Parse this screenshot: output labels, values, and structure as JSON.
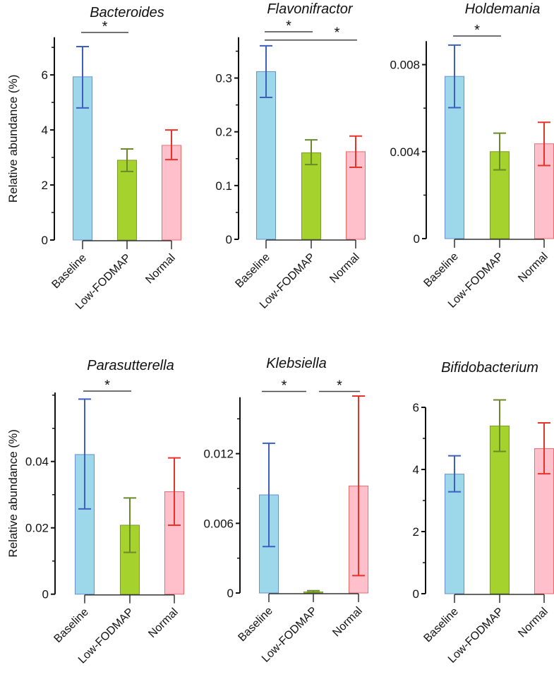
{
  "chart_data": [
    {
      "type": "bar",
      "title": "Bacteroides",
      "ylabel": "Relative abundance (%)",
      "categories": [
        "Baseline",
        "Low-FODMAP",
        "Normal"
      ],
      "values": [
        5.93,
        2.9,
        3.44
      ],
      "error_high": [
        7.03,
        3.31,
        4.0
      ],
      "error_low": [
        4.8,
        2.49,
        2.92
      ],
      "ylim": [
        0,
        7.37
      ],
      "yticks": [
        0,
        2,
        4,
        6
      ],
      "ytick_labels": [
        "0",
        "2",
        "4",
        "6"
      ],
      "minor_step": 1,
      "significance": [
        {
          "pair": [
            0,
            1
          ],
          "label": "*"
        }
      ]
    },
    {
      "type": "bar",
      "title": "Flavonifractor",
      "ylabel": "",
      "categories": [
        "Baseline",
        "Low-FODMAP",
        "Normal"
      ],
      "values": [
        0.312,
        0.161,
        0.163
      ],
      "error_high": [
        0.36,
        0.185,
        0.192
      ],
      "error_low": [
        0.264,
        0.139,
        0.134
      ],
      "ylim": [
        0,
        0.376
      ],
      "yticks": [
        0,
        0.1,
        0.2,
        0.3
      ],
      "ytick_labels": [
        "0",
        "0.1",
        "0.2",
        "0.3"
      ],
      "minor_step": 0.05,
      "significance": [
        {
          "pair": [
            0,
            1
          ],
          "label": "*"
        },
        {
          "pair": [
            0,
            2
          ],
          "label": "*"
        }
      ]
    },
    {
      "type": "bar",
      "title": "Holdemania",
      "ylabel": "",
      "categories": [
        "Baseline",
        "Low-FODMAP",
        "Normal"
      ],
      "values": [
        0.00746,
        0.004,
        0.00436
      ],
      "error_high": [
        0.0089,
        0.00485,
        0.00535
      ],
      "error_low": [
        0.00602,
        0.00316,
        0.00336
      ],
      "ylim": [
        0,
        0.00908
      ],
      "yticks": [
        0,
        0.004,
        0.008
      ],
      "ytick_labels": [
        "0",
        "0.004",
        "0.008"
      ],
      "minor_step": 0.002,
      "significance": [
        {
          "pair": [
            0,
            1
          ],
          "label": "*"
        }
      ]
    },
    {
      "type": "bar",
      "title": "Parasutterella",
      "ylabel": "Relative abundance (%)",
      "categories": [
        "Baseline",
        "Low-FODMAP",
        "Normal"
      ],
      "values": [
        0.0421,
        0.0208,
        0.0309
      ],
      "error_high": [
        0.0588,
        0.029,
        0.0411
      ],
      "error_low": [
        0.0257,
        0.0126,
        0.0208
      ],
      "ylim": [
        0,
        0.0608
      ],
      "yticks": [
        0,
        0.02,
        0.04
      ],
      "ytick_labels": [
        "0",
        "0.02",
        "0.04"
      ],
      "minor_step": 0.01,
      "significance": [
        {
          "pair": [
            0,
            1
          ],
          "label": "*"
        }
      ]
    },
    {
      "type": "bar",
      "title": "Klebsiella",
      "ylabel": "",
      "categories": [
        "Baseline",
        "Low-FODMAP",
        "Normal"
      ],
      "values": [
        0.00845,
        0.0001,
        0.00922
      ],
      "error_high": [
        0.0129,
        0.0002,
        0.01696
      ],
      "error_low": [
        0.004,
        0.0,
        0.0015
      ],
      "ylim": [
        0,
        0.01686
      ],
      "yticks": [
        0,
        0.006,
        0.012
      ],
      "ytick_labels": [
        "0",
        "0.006",
        "0.012"
      ],
      "minor_step": 0.003,
      "significance": [
        {
          "pair": [
            0,
            1
          ],
          "label": "*"
        },
        {
          "pair": [
            1,
            2
          ],
          "label": "*"
        }
      ]
    },
    {
      "type": "bar",
      "title": "Bifidobacterium",
      "ylabel": "",
      "categories": [
        "Baseline",
        "Low-FODMAP",
        "Normal"
      ],
      "values": [
        3.85,
        5.4,
        4.67
      ],
      "error_high": [
        4.44,
        6.24,
        5.5
      ],
      "error_low": [
        3.28,
        4.58,
        3.86
      ],
      "ylim": [
        0,
        6.0
      ],
      "yticks": [
        0,
        2,
        4,
        6
      ],
      "ytick_labels": [
        "0",
        "2",
        "4",
        "6"
      ],
      "minor_step": 1,
      "significance": []
    }
  ],
  "colors": {
    "fills": [
      "#9dd8ea",
      "#a6d22e",
      "#ffc0cb"
    ],
    "edges": [
      "#6a8fd0",
      "#7a9a30",
      "#f06a6a"
    ],
    "errors": [
      "#3f5fbf",
      "#6a8a2a",
      "#e8322a"
    ],
    "axis": "#111111",
    "sig_line": "#444444"
  }
}
